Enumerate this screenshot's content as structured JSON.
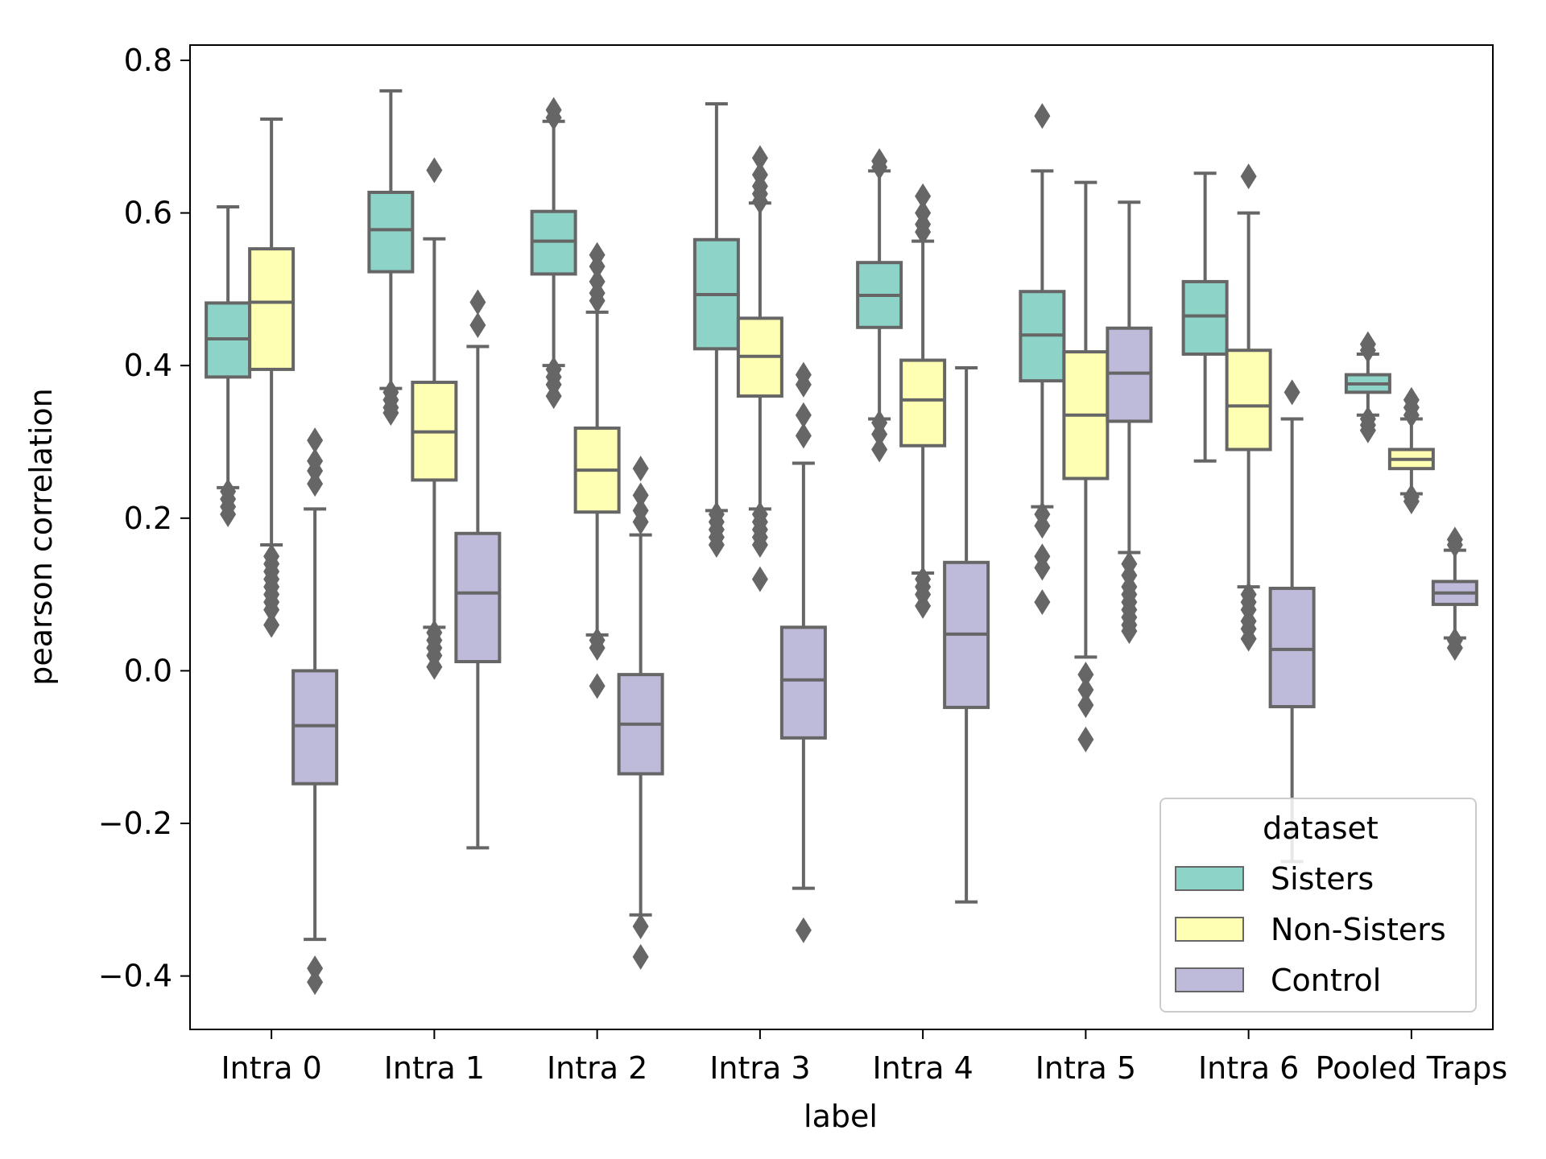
{
  "chart_data": {
    "type": "box",
    "xlabel": "label",
    "ylabel": "pearson correlation",
    "ylim": [
      -0.47,
      0.82
    ],
    "yticks": [
      {
        "value": -0.4,
        "label": "−0.4"
      },
      {
        "value": -0.2,
        "label": "−0.2"
      },
      {
        "value": 0.0,
        "label": "0.0"
      },
      {
        "value": 0.2,
        "label": "0.2"
      },
      {
        "value": 0.4,
        "label": "0.4"
      },
      {
        "value": 0.6,
        "label": "0.6"
      },
      {
        "value": 0.8,
        "label": "0.8"
      }
    ],
    "categories": [
      "Intra 0",
      "Intra 1",
      "Intra 2",
      "Intra 3",
      "Intra 4",
      "Intra 5",
      "Intra 6",
      "Pooled Traps"
    ],
    "legend": {
      "title": "dataset",
      "position": "lower-right"
    },
    "series": [
      {
        "name": "Sisters",
        "color": "#8dd3c7",
        "boxes": [
          {
            "whisker_low": 0.24,
            "q1": 0.385,
            "median": 0.435,
            "q3": 0.482,
            "whisker_high": 0.608,
            "outliers": [
              0.235,
              0.225,
              0.215,
              0.205
            ]
          },
          {
            "whisker_low": 0.37,
            "q1": 0.523,
            "median": 0.578,
            "q3": 0.627,
            "whisker_high": 0.76,
            "outliers": [
              0.365,
              0.355,
              0.345,
              0.338
            ]
          },
          {
            "whisker_low": 0.4,
            "q1": 0.52,
            "median": 0.563,
            "q3": 0.602,
            "whisker_high": 0.72,
            "outliers": [
              0.735,
              0.725,
              0.395,
              0.385,
              0.375,
              0.36
            ]
          },
          {
            "whisker_low": 0.21,
            "q1": 0.422,
            "median": 0.493,
            "q3": 0.565,
            "whisker_high": 0.743,
            "outliers": [
              0.205,
              0.195,
              0.185,
              0.175,
              0.165
            ]
          },
          {
            "whisker_low": 0.33,
            "q1": 0.45,
            "median": 0.492,
            "q3": 0.535,
            "whisker_high": 0.655,
            "outliers": [
              0.668,
              0.66,
              0.325,
              0.31,
              0.29
            ]
          },
          {
            "whisker_low": 0.215,
            "q1": 0.38,
            "median": 0.44,
            "q3": 0.497,
            "whisker_high": 0.655,
            "outliers": [
              0.727,
              0.205,
              0.19,
              0.15,
              0.135,
              0.09
            ]
          },
          {
            "whisker_low": 0.275,
            "q1": 0.415,
            "median": 0.465,
            "q3": 0.51,
            "whisker_high": 0.652,
            "outliers": []
          },
          {
            "whisker_low": 0.335,
            "q1": 0.365,
            "median": 0.376,
            "q3": 0.388,
            "whisker_high": 0.415,
            "outliers": [
              0.428,
              0.42,
              0.33,
              0.322,
              0.315
            ]
          }
        ]
      },
      {
        "name": "Non-Sisters",
        "color": "#ffffb3",
        "boxes": [
          {
            "whisker_low": 0.165,
            "q1": 0.395,
            "median": 0.483,
            "q3": 0.553,
            "whisker_high": 0.723,
            "outliers": [
              0.15,
              0.14,
              0.13,
              0.12,
              0.11,
              0.1,
              0.09,
              0.08,
              0.06
            ]
          },
          {
            "whisker_low": 0.057,
            "q1": 0.25,
            "median": 0.313,
            "q3": 0.378,
            "whisker_high": 0.566,
            "outliers": [
              0.656,
              0.05,
              0.04,
              0.03,
              0.02,
              0.005
            ]
          },
          {
            "whisker_low": 0.047,
            "q1": 0.208,
            "median": 0.263,
            "q3": 0.318,
            "whisker_high": 0.47,
            "outliers": [
              0.545,
              0.53,
              0.51,
              0.495,
              0.485,
              0.04,
              0.03,
              -0.02
            ]
          },
          {
            "whisker_low": 0.212,
            "q1": 0.36,
            "median": 0.412,
            "q3": 0.462,
            "whisker_high": 0.613,
            "outliers": [
              0.672,
              0.65,
              0.635,
              0.625,
              0.615,
              0.205,
              0.195,
              0.185,
              0.175,
              0.165,
              0.12
            ]
          },
          {
            "whisker_low": 0.128,
            "q1": 0.295,
            "median": 0.355,
            "q3": 0.407,
            "whisker_high": 0.563,
            "outliers": [
              0.622,
              0.6,
              0.585,
              0.575,
              0.12,
              0.11,
              0.1,
              0.085
            ]
          },
          {
            "whisker_low": 0.018,
            "q1": 0.252,
            "median": 0.335,
            "q3": 0.418,
            "whisker_high": 0.64,
            "outliers": [
              -0.005,
              -0.025,
              -0.045,
              -0.09
            ]
          },
          {
            "whisker_low": 0.11,
            "q1": 0.29,
            "median": 0.347,
            "q3": 0.42,
            "whisker_high": 0.6,
            "outliers": [
              0.648,
              0.1,
              0.09,
              0.08,
              0.065,
              0.055,
              0.042
            ]
          },
          {
            "whisker_low": 0.232,
            "q1": 0.265,
            "median": 0.277,
            "q3": 0.29,
            "whisker_high": 0.33,
            "outliers": [
              0.355,
              0.345,
              0.335,
              0.228,
              0.222
            ]
          }
        ]
      },
      {
        "name": "Control",
        "color": "#bebada",
        "boxes": [
          {
            "whisker_low": -0.352,
            "q1": -0.148,
            "median": -0.072,
            "q3": 0.0,
            "whisker_high": 0.212,
            "outliers": [
              0.302,
              0.275,
              0.262,
              0.245,
              -0.39,
              -0.408
            ]
          },
          {
            "whisker_low": -0.232,
            "q1": 0.012,
            "median": 0.102,
            "q3": 0.18,
            "whisker_high": 0.425,
            "outliers": [
              0.483,
              0.453
            ]
          },
          {
            "whisker_low": -0.32,
            "q1": -0.135,
            "median": -0.07,
            "q3": -0.005,
            "whisker_high": 0.178,
            "outliers": [
              0.265,
              0.23,
              0.21,
              0.195,
              -0.335,
              -0.375
            ]
          },
          {
            "whisker_low": -0.285,
            "q1": -0.088,
            "median": -0.012,
            "q3": 0.057,
            "whisker_high": 0.272,
            "outliers": [
              0.388,
              0.375,
              0.335,
              0.308,
              -0.34
            ]
          },
          {
            "whisker_low": -0.303,
            "q1": -0.048,
            "median": 0.048,
            "q3": 0.142,
            "whisker_high": 0.397,
            "outliers": []
          },
          {
            "whisker_low": 0.155,
            "q1": 0.327,
            "median": 0.39,
            "q3": 0.449,
            "whisker_high": 0.614,
            "outliers": [
              0.14,
              0.125,
              0.11,
              0.1,
              0.09,
              0.08,
              0.07,
              0.06,
              0.052
            ]
          },
          {
            "whisker_low": -0.25,
            "q1": -0.047,
            "median": 0.028,
            "q3": 0.108,
            "whisker_high": 0.33,
            "outliers": [
              0.365
            ]
          },
          {
            "whisker_low": 0.043,
            "q1": 0.087,
            "median": 0.102,
            "q3": 0.117,
            "whisker_high": 0.158,
            "outliers": [
              0.172,
              0.165,
              0.04,
              0.03
            ]
          }
        ]
      }
    ]
  }
}
